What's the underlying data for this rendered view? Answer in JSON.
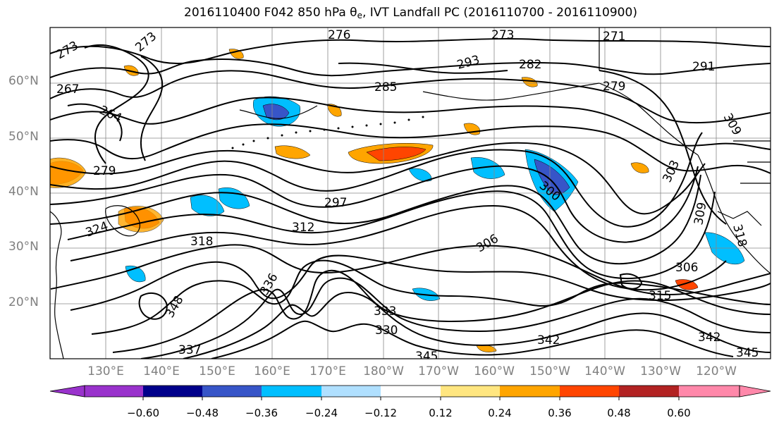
{
  "title": {
    "prefix": "2016110400 F042 850 hPa θ",
    "sub": "e",
    "suffix": ", IVT Landfall PC (2016110700 - 2016110900)"
  },
  "map": {
    "latitude_labels": [
      "60°N",
      "50°N",
      "40°N",
      "30°N",
      "20°N"
    ],
    "longitude_labels": [
      "130°E",
      "140°E",
      "150°E",
      "160°E",
      "170°E",
      "180°W",
      "170°W",
      "160°W",
      "150°W",
      "140°W",
      "130°W",
      "120°W"
    ],
    "gridlines": true,
    "contour_labels": [
      "273",
      "276",
      "273",
      "271",
      "273",
      "267",
      "264",
      "279",
      "285",
      "282",
      "293",
      "291",
      "309",
      "279",
      "297",
      "300",
      "303",
      "309",
      "306",
      "312",
      "318",
      "324",
      "330",
      "333",
      "336",
      "345",
      "348",
      "342",
      "345",
      "342",
      "337",
      "306",
      "315",
      "318"
    ],
    "contour_color": "#000000",
    "coastline_color": "#000000"
  },
  "colorbar": {
    "tick_labels": [
      "−0.60",
      "−0.48",
      "−0.36",
      "−0.24",
      "−0.12",
      "0.12",
      "0.24",
      "0.36",
      "0.48",
      "0.60"
    ],
    "colors": [
      "#9932cc",
      "#00008b",
      "#3755c8",
      "#00bfff",
      "#b0e0ff",
      "#ffffff",
      "#ffe680",
      "#ffa500",
      "#ff4500",
      "#b22222",
      "#ff88aa"
    ]
  }
}
